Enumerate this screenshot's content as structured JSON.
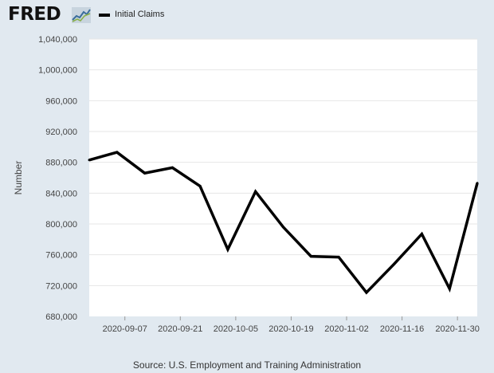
{
  "header": {
    "logo_text": "FRED",
    "logo_icon": "trend-graph-icon"
  },
  "colors": {
    "background": "#e1e9f0",
    "plot_background": "#ffffff",
    "series_line": "#000000",
    "grid": "#e6e6e6"
  },
  "chart_data": {
    "type": "line",
    "title": "",
    "xlabel": "",
    "ylabel": "Number",
    "ylim": [
      680000,
      1040000
    ],
    "y_ticks": [
      680000,
      720000,
      760000,
      800000,
      840000,
      880000,
      920000,
      960000,
      1000000,
      1040000
    ],
    "y_tick_labels": [
      "680,000",
      "720,000",
      "760,000",
      "800,000",
      "840,000",
      "880,000",
      "920,000",
      "960,000",
      "1,000,000",
      "1,040,000"
    ],
    "x_tick_labels": [
      "2020-09-07",
      "2020-09-21",
      "2020-10-05",
      "2020-10-19",
      "2020-11-02",
      "2020-11-16",
      "2020-11-30"
    ],
    "x_tick_dates": [
      "2020-09-07",
      "2020-09-21",
      "2020-10-05",
      "2020-10-19",
      "2020-11-02",
      "2020-11-16",
      "2020-11-30"
    ],
    "xlim": [
      "2020-08-29",
      "2020-12-05"
    ],
    "legend_position": "top-left",
    "grid": true,
    "series": [
      {
        "name": "Initial Claims",
        "x": [
          "2020-08-29",
          "2020-09-05",
          "2020-09-12",
          "2020-09-19",
          "2020-09-26",
          "2020-10-03",
          "2020-10-10",
          "2020-10-17",
          "2020-10-24",
          "2020-10-31",
          "2020-11-07",
          "2020-11-14",
          "2020-11-21",
          "2020-11-28",
          "2020-12-05"
        ],
        "values": [
          883000,
          893000,
          866000,
          873000,
          849000,
          767000,
          842000,
          796000,
          758000,
          757000,
          711000,
          748000,
          787000,
          716000,
          853000
        ]
      }
    ],
    "source": "Source: U.S. Employment and Training Administration"
  }
}
